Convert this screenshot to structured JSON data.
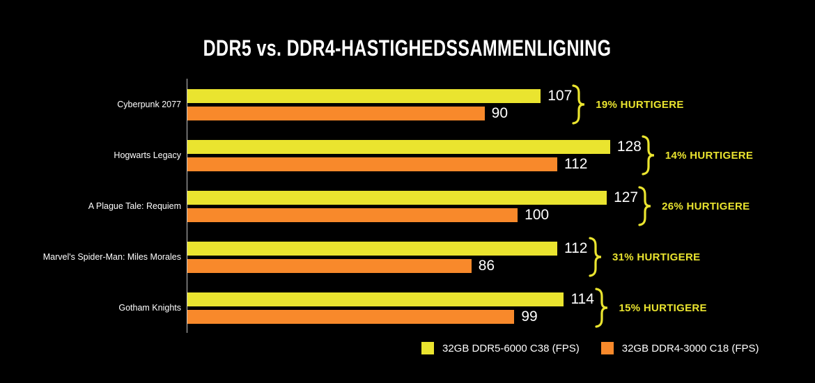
{
  "title": "DDR5 vs. DDR4-HASTIGHEDSSAMMENLIGNING",
  "colors": {
    "background": "#000000",
    "accent": "#eae42f",
    "ddr5_bar": "#eae42f",
    "ddr4_bar": "#f8892b",
    "axis": "#c8c8c8",
    "value_text": "#ffffff",
    "label_text": "#ffffff",
    "title_text": "#ffffff"
  },
  "chart_data": {
    "type": "bar",
    "orientation": "horizontal",
    "title": "DDR5 vs. DDR4-HASTIGHEDSSAMMENLIGNING",
    "categories": [
      "Cyberpunk 2077",
      "Hogwarts Legacy",
      "A Plague Tale: Requiem",
      "Marvel's Spider-Man: Miles Morales",
      "Gotham Knights"
    ],
    "series": [
      {
        "name": "32GB DDR5-6000 C38 (FPS)",
        "color": "#eae42f",
        "values": [
          107,
          128,
          127,
          112,
          114
        ]
      },
      {
        "name": "32GB DDR4-3000 C18 (FPS)",
        "color": "#f8892b",
        "values": [
          90,
          112,
          100,
          86,
          99
        ]
      }
    ],
    "annotations": [
      "19% HURTIGERE",
      "14% HURTIGERE",
      "26% HURTIGERE",
      "31% HURTIGERE",
      "15% HURTIGERE"
    ],
    "xlabel": "",
    "ylabel": "",
    "xlim": [
      0,
      135
    ],
    "grid": false,
    "value_labels": true,
    "legend_position": "bottom"
  },
  "legend": {
    "items": [
      {
        "label": "32GB DDR5-6000 C38 (FPS)",
        "color": "#eae42f"
      },
      {
        "label": "32GB DDR4-3000 C18 (FPS)",
        "color": "#f8892b"
      }
    ]
  }
}
